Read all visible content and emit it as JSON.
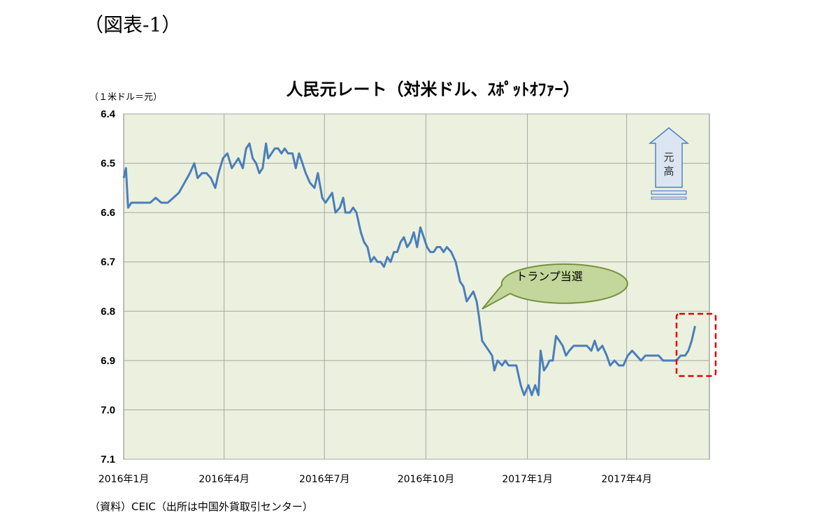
{
  "figure_label": "（図表-1）",
  "unit_label": "（１米ドル＝元）",
  "source_note": "（資料）CEIC（出所は中国外貨取引センター）",
  "annotations": {
    "trump_bubble": "トランプ当選",
    "arrow_line1": "元",
    "arrow_line2": "高"
  },
  "colors": {
    "line": "#4a7ebb",
    "plot_bg": "#ebf1de",
    "grid": "#a6a6a6",
    "bubble_fill": "#c3d69b",
    "bubble_stroke": "#76923c",
    "highlight_box": "#e00000",
    "arrow_fill": "#dce6f2",
    "arrow_stroke": "#4f81bd"
  },
  "chart_data": {
    "type": "line",
    "title": "人民元レート（対米ドル、ｽﾎﾟｯﾄｵﾌｧｰ）",
    "xlabel": "",
    "ylabel": "（１米ドル＝元）",
    "y_inverted": true,
    "ylim": [
      6.4,
      7.1
    ],
    "yticks": [
      "6.4",
      "6.5",
      "6.6",
      "6.7",
      "6.8",
      "6.9",
      "7.0",
      "7.1"
    ],
    "xticks": [
      {
        "label": "2016年1月",
        "date": "2016-01-01"
      },
      {
        "label": "2016年4月",
        "date": "2016-04-01"
      },
      {
        "label": "2016年7月",
        "date": "2016-07-01"
      },
      {
        "label": "2016年10月",
        "date": "2016-10-01"
      },
      {
        "label": "2017年1月",
        "date": "2017-01-01"
      },
      {
        "label": "2017年4月",
        "date": "2017-04-01"
      }
    ],
    "xlim": [
      "2016-01-01",
      "2017-06-15"
    ],
    "grid": true,
    "series": [
      {
        "name": "",
        "points": [
          [
            "2016-01-01",
            6.53
          ],
          [
            "2016-01-03",
            6.51
          ],
          [
            "2016-01-05",
            6.59
          ],
          [
            "2016-01-08",
            6.58
          ],
          [
            "2016-01-12",
            6.58
          ],
          [
            "2016-01-16",
            6.58
          ],
          [
            "2016-01-20",
            6.58
          ],
          [
            "2016-01-25",
            6.58
          ],
          [
            "2016-01-30",
            6.57
          ],
          [
            "2016-02-04",
            6.58
          ],
          [
            "2016-02-10",
            6.58
          ],
          [
            "2016-02-15",
            6.57
          ],
          [
            "2016-02-20",
            6.56
          ],
          [
            "2016-02-25",
            6.54
          ],
          [
            "2016-03-01",
            6.52
          ],
          [
            "2016-03-05",
            6.5
          ],
          [
            "2016-03-08",
            6.53
          ],
          [
            "2016-03-12",
            6.52
          ],
          [
            "2016-03-16",
            6.52
          ],
          [
            "2016-03-20",
            6.53
          ],
          [
            "2016-03-24",
            6.55
          ],
          [
            "2016-03-27",
            6.52
          ],
          [
            "2016-03-31",
            6.49
          ],
          [
            "2016-04-04",
            6.48
          ],
          [
            "2016-04-08",
            6.51
          ],
          [
            "2016-04-11",
            6.5
          ],
          [
            "2016-04-14",
            6.49
          ],
          [
            "2016-04-18",
            6.51
          ],
          [
            "2016-04-21",
            6.47
          ],
          [
            "2016-04-24",
            6.46
          ],
          [
            "2016-04-27",
            6.49
          ],
          [
            "2016-04-30",
            6.5
          ],
          [
            "2016-05-03",
            6.52
          ],
          [
            "2016-05-06",
            6.51
          ],
          [
            "2016-05-09",
            6.46
          ],
          [
            "2016-05-11",
            6.49
          ],
          [
            "2016-05-14",
            6.48
          ],
          [
            "2016-05-17",
            6.47
          ],
          [
            "2016-05-20",
            6.47
          ],
          [
            "2016-05-23",
            6.48
          ],
          [
            "2016-05-26",
            6.47
          ],
          [
            "2016-05-29",
            6.48
          ],
          [
            "2016-06-02",
            6.48
          ],
          [
            "2016-06-05",
            6.51
          ],
          [
            "2016-06-08",
            6.48
          ],
          [
            "2016-06-11",
            6.5
          ],
          [
            "2016-06-14",
            6.52
          ],
          [
            "2016-06-18",
            6.54
          ],
          [
            "2016-06-22",
            6.55
          ],
          [
            "2016-06-25",
            6.52
          ],
          [
            "2016-06-29",
            6.57
          ],
          [
            "2016-07-02",
            6.58
          ],
          [
            "2016-07-05",
            6.57
          ],
          [
            "2016-07-08",
            6.56
          ],
          [
            "2016-07-11",
            6.6
          ],
          [
            "2016-07-15",
            6.59
          ],
          [
            "2016-07-18",
            6.57
          ],
          [
            "2016-07-20",
            6.6
          ],
          [
            "2016-07-24",
            6.6
          ],
          [
            "2016-07-27",
            6.59
          ],
          [
            "2016-07-30",
            6.6
          ],
          [
            "2016-08-03",
            6.64
          ],
          [
            "2016-08-06",
            6.66
          ],
          [
            "2016-08-09",
            6.67
          ],
          [
            "2016-08-12",
            6.7
          ],
          [
            "2016-08-15",
            6.69
          ],
          [
            "2016-08-18",
            6.7
          ],
          [
            "2016-08-21",
            6.7
          ],
          [
            "2016-08-24",
            6.71
          ],
          [
            "2016-08-27",
            6.69
          ],
          [
            "2016-08-30",
            6.7
          ],
          [
            "2016-09-02",
            6.68
          ],
          [
            "2016-09-05",
            6.68
          ],
          [
            "2016-09-08",
            6.66
          ],
          [
            "2016-09-11",
            6.65
          ],
          [
            "2016-09-14",
            6.67
          ],
          [
            "2016-09-17",
            6.66
          ],
          [
            "2016-09-20",
            6.64
          ],
          [
            "2016-09-23",
            6.67
          ],
          [
            "2016-09-26",
            6.63
          ],
          [
            "2016-09-29",
            6.65
          ],
          [
            "2016-10-02",
            6.67
          ],
          [
            "2016-10-05",
            6.68
          ],
          [
            "2016-10-08",
            6.68
          ],
          [
            "2016-10-11",
            6.67
          ],
          [
            "2016-10-14",
            6.67
          ],
          [
            "2016-10-17",
            6.68
          ],
          [
            "2016-10-20",
            6.67
          ],
          [
            "2016-10-24",
            6.68
          ],
          [
            "2016-10-28",
            6.7
          ],
          [
            "2016-11-01",
            6.74
          ],
          [
            "2016-11-04",
            6.75
          ],
          [
            "2016-11-07",
            6.78
          ],
          [
            "2016-11-10",
            6.77
          ],
          [
            "2016-11-13",
            6.76
          ],
          [
            "2016-11-16",
            6.78
          ],
          [
            "2016-11-18",
            6.81
          ],
          [
            "2016-11-21",
            6.86
          ],
          [
            "2016-11-24",
            6.87
          ],
          [
            "2016-11-27",
            6.88
          ],
          [
            "2016-11-30",
            6.89
          ],
          [
            "2016-12-02",
            6.92
          ],
          [
            "2016-12-05",
            6.9
          ],
          [
            "2016-12-09",
            6.91
          ],
          [
            "2016-12-12",
            6.9
          ],
          [
            "2016-12-15",
            6.91
          ],
          [
            "2016-12-18",
            6.91
          ],
          [
            "2016-12-22",
            6.91
          ],
          [
            "2016-12-26",
            6.95
          ],
          [
            "2016-12-29",
            6.97
          ],
          [
            "2017-01-02",
            6.95
          ],
          [
            "2017-01-05",
            6.97
          ],
          [
            "2017-01-08",
            6.95
          ],
          [
            "2017-01-11",
            6.97
          ],
          [
            "2017-01-13",
            6.88
          ],
          [
            "2017-01-16",
            6.92
          ],
          [
            "2017-01-19",
            6.91
          ],
          [
            "2017-01-21",
            6.9
          ],
          [
            "2017-01-24",
            6.9
          ],
          [
            "2017-01-27",
            6.85
          ],
          [
            "2017-01-30",
            6.86
          ],
          [
            "2017-02-02",
            6.87
          ],
          [
            "2017-02-05",
            6.89
          ],
          [
            "2017-02-08",
            6.88
          ],
          [
            "2017-02-12",
            6.87
          ],
          [
            "2017-02-16",
            6.87
          ],
          [
            "2017-02-20",
            6.87
          ],
          [
            "2017-02-24",
            6.87
          ],
          [
            "2017-02-28",
            6.88
          ],
          [
            "2017-03-03",
            6.86
          ],
          [
            "2017-03-06",
            6.88
          ],
          [
            "2017-03-10",
            6.87
          ],
          [
            "2017-03-14",
            6.89
          ],
          [
            "2017-03-17",
            6.91
          ],
          [
            "2017-03-21",
            6.9
          ],
          [
            "2017-03-25",
            6.91
          ],
          [
            "2017-03-29",
            6.91
          ],
          [
            "2017-04-02",
            6.89
          ],
          [
            "2017-04-06",
            6.88
          ],
          [
            "2017-04-10",
            6.89
          ],
          [
            "2017-04-14",
            6.9
          ],
          [
            "2017-04-18",
            6.89
          ],
          [
            "2017-04-22",
            6.89
          ],
          [
            "2017-04-26",
            6.89
          ],
          [
            "2017-04-30",
            6.89
          ],
          [
            "2017-05-04",
            6.9
          ],
          [
            "2017-05-08",
            6.9
          ],
          [
            "2017-05-12",
            6.9
          ],
          [
            "2017-05-16",
            6.9
          ],
          [
            "2017-05-20",
            6.89
          ],
          [
            "2017-05-24",
            6.89
          ],
          [
            "2017-05-27",
            6.88
          ],
          [
            "2017-05-30",
            6.86
          ],
          [
            "2017-06-02",
            6.83
          ]
        ]
      }
    ]
  }
}
